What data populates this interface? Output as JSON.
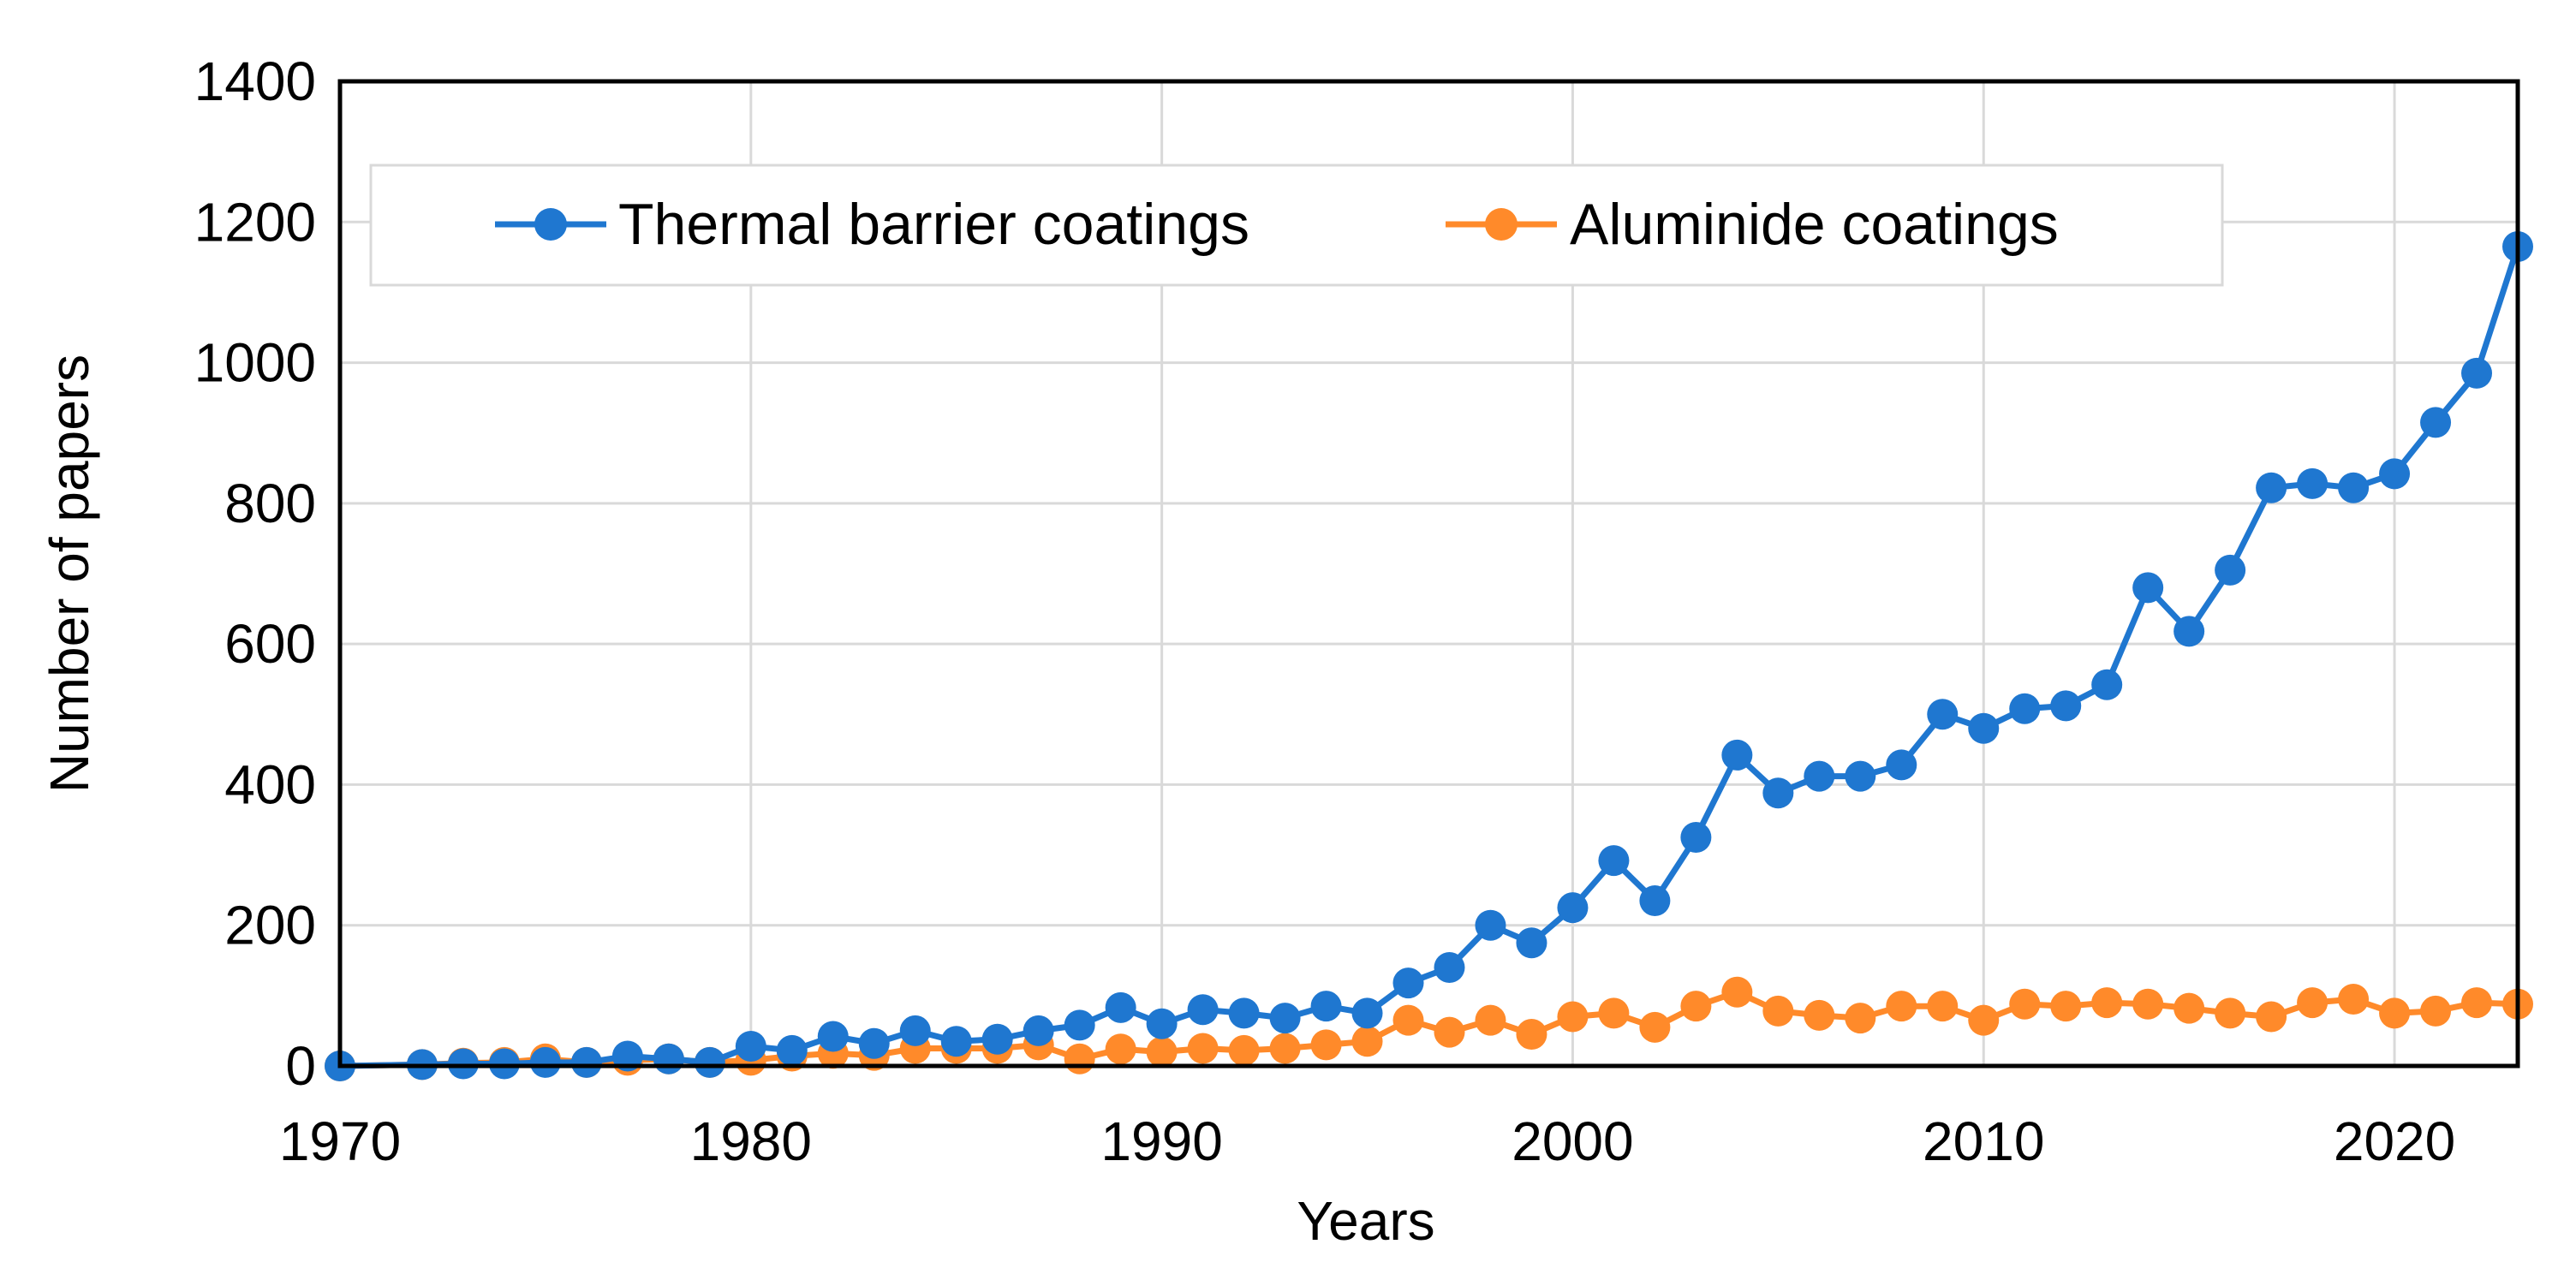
{
  "chart_data": {
    "type": "line",
    "title": "",
    "xlabel": "Years",
    "ylabel": "Number of papers",
    "xlim": [
      1970,
      2023
    ],
    "ylim": [
      0,
      1400
    ],
    "x_ticks": [
      1970,
      1980,
      1990,
      2000,
      2010,
      2020
    ],
    "y_ticks": [
      0,
      200,
      400,
      600,
      800,
      1000,
      1200,
      1400
    ],
    "x_tick_labels": [
      "1970",
      "1980",
      "1990",
      "2000",
      "2010",
      "2020"
    ],
    "y_tick_labels": [
      "0",
      "200",
      "400",
      "600",
      "800",
      "1000",
      "1200",
      "1400"
    ],
    "grid": true,
    "legend_position": "top",
    "series": [
      {
        "name": "Thermal barrier coatings",
        "color": "#1f77d0",
        "x": [
          1970,
          1972,
          1973,
          1974,
          1975,
          1976,
          1977,
          1978,
          1979,
          1980,
          1981,
          1982,
          1983,
          1984,
          1985,
          1986,
          1987,
          1988,
          1989,
          1990,
          1991,
          1992,
          1993,
          1994,
          1995,
          1996,
          1997,
          1998,
          1999,
          2000,
          2001,
          2002,
          2003,
          2004,
          2005,
          2006,
          2007,
          2008,
          2009,
          2010,
          2011,
          2012,
          2013,
          2014,
          2015,
          2016,
          2017,
          2018,
          2019,
          2020,
          2021,
          2022,
          2023
        ],
        "values": [
          0,
          2,
          3,
          3,
          5,
          5,
          14,
          10,
          5,
          28,
          22,
          42,
          32,
          50,
          35,
          38,
          50,
          58,
          83,
          60,
          80,
          75,
          68,
          85,
          75,
          118,
          140,
          200,
          175,
          225,
          292,
          235,
          325,
          442,
          388,
          412,
          412,
          428,
          500,
          480,
          508,
          512,
          542,
          680,
          618,
          705,
          822,
          828,
          822,
          842,
          915,
          985,
          1165
        ]
      },
      {
        "name": "Aluminide coatings",
        "color": "#ff8a2a",
        "x": [
          1970,
          1972,
          1973,
          1974,
          1975,
          1976,
          1977,
          1978,
          1979,
          1980,
          1981,
          1982,
          1983,
          1984,
          1985,
          1986,
          1987,
          1988,
          1989,
          1990,
          1991,
          1992,
          1993,
          1994,
          1995,
          1996,
          1997,
          1998,
          1999,
          2000,
          2001,
          2002,
          2003,
          2004,
          2005,
          2006,
          2007,
          2008,
          2009,
          2010,
          2011,
          2012,
          2013,
          2014,
          2015,
          2016,
          2017,
          2018,
          2019,
          2020,
          2021,
          2022,
          2023
        ],
        "values": [
          0,
          2,
          4,
          5,
          10,
          5,
          8,
          10,
          5,
          8,
          14,
          18,
          15,
          25,
          25,
          25,
          30,
          10,
          24,
          20,
          25,
          22,
          25,
          30,
          35,
          65,
          48,
          65,
          45,
          70,
          75,
          55,
          85,
          105,
          78,
          72,
          68,
          85,
          85,
          65,
          88,
          85,
          90,
          88,
          82,
          75,
          70,
          90,
          95,
          75,
          78,
          90,
          88
        ]
      }
    ]
  }
}
